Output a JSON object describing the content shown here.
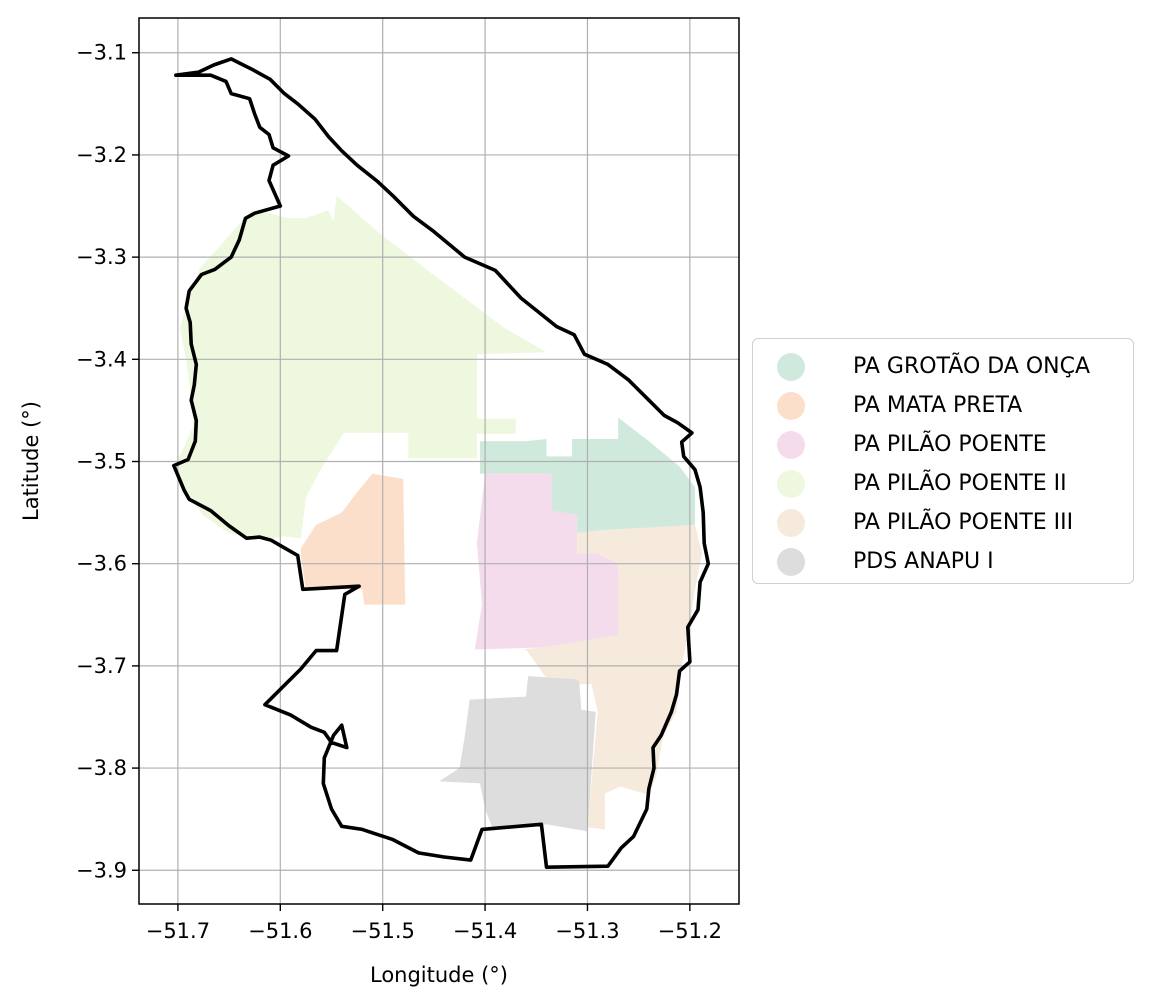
{
  "chart_data": {
    "type": "map",
    "xlabel": "Longitude (°)",
    "ylabel": "Latitude (°)",
    "xlim": [
      -51.738,
      -51.152
    ],
    "ylim": [
      -3.933,
      -3.066
    ],
    "xticks": [
      -51.7,
      -51.6,
      -51.5,
      -51.4,
      -51.3,
      -51.2
    ],
    "xtick_labels": [
      "−51.7",
      "−51.6",
      "−51.5",
      "−51.4",
      "−51.3",
      "−51.2"
    ],
    "yticks": [
      -3.1,
      -3.2,
      -3.3,
      -3.4,
      -3.5,
      -3.6,
      -3.7,
      -3.8,
      -3.9
    ],
    "ytick_labels": [
      "−3.1",
      "−3.2",
      "−3.3",
      "−3.4",
      "−3.5",
      "−3.6",
      "−3.7",
      "−3.8",
      "−3.9"
    ],
    "grid": true,
    "legend_position": "right",
    "legend": [
      {
        "label": "PA GROTÃO DA ONÇA",
        "color": "#cfeadc"
      },
      {
        "label": "PA MATA PRETA",
        "color": "#fcdfca"
      },
      {
        "label": "PA PILÃO POENTE",
        "color": "#f5dcec"
      },
      {
        "label": "PA PILÃO POENTE II",
        "color": "#eef8de"
      },
      {
        "label": "PA PILÃO POENTE III",
        "color": "#f5eadc"
      },
      {
        "label": "PDS ANAPU I",
        "color": "#dddddd"
      }
    ],
    "boundary_color": "#000000",
    "regions": [
      {
        "name": "PA PILÃO POENTE II",
        "color": "#eef8de",
        "coords": [
          [
            -51.607,
            -3.258
          ],
          [
            -51.592,
            -3.262
          ],
          [
            -51.575,
            -3.262
          ],
          [
            -51.553,
            -3.254
          ],
          [
            -51.548,
            -3.265
          ],
          [
            -51.545,
            -3.24
          ],
          [
            -51.505,
            -3.275
          ],
          [
            -51.46,
            -3.31
          ],
          [
            -51.42,
            -3.34
          ],
          [
            -51.38,
            -3.37
          ],
          [
            -51.34,
            -3.393
          ],
          [
            -51.408,
            -3.395
          ],
          [
            -51.408,
            -3.458
          ],
          [
            -51.37,
            -3.458
          ],
          [
            -51.37,
            -3.473
          ],
          [
            -51.408,
            -3.473
          ],
          [
            -51.408,
            -3.497
          ],
          [
            -51.475,
            -3.497
          ],
          [
            -51.475,
            -3.472
          ],
          [
            -51.538,
            -3.472
          ],
          [
            -51.562,
            -3.51
          ],
          [
            -51.575,
            -3.535
          ],
          [
            -51.58,
            -3.575
          ],
          [
            -51.597,
            -3.573
          ],
          [
            -51.615,
            -3.577
          ],
          [
            -51.65,
            -3.57
          ],
          [
            -51.675,
            -3.553
          ],
          [
            -51.685,
            -3.54
          ],
          [
            -51.698,
            -3.52
          ],
          [
            -51.704,
            -3.505
          ],
          [
            -51.695,
            -3.488
          ],
          [
            -51.685,
            -3.465
          ],
          [
            -51.688,
            -3.43
          ],
          [
            -51.692,
            -3.4
          ],
          [
            -51.698,
            -3.37
          ],
          [
            -51.69,
            -3.34
          ],
          [
            -51.678,
            -3.31
          ],
          [
            -51.655,
            -3.285
          ],
          [
            -51.638,
            -3.265
          ],
          [
            -51.628,
            -3.255
          ]
        ]
      },
      {
        "name": "PA GROTÃO DA ONÇA",
        "color": "#cfeadc",
        "coords": [
          [
            -51.405,
            -3.48
          ],
          [
            -51.36,
            -3.48
          ],
          [
            -51.34,
            -3.478
          ],
          [
            -51.34,
            -3.495
          ],
          [
            -51.315,
            -3.495
          ],
          [
            -51.315,
            -3.478
          ],
          [
            -51.27,
            -3.478
          ],
          [
            -51.27,
            -3.457
          ],
          [
            -51.24,
            -3.48
          ],
          [
            -51.21,
            -3.505
          ],
          [
            -51.195,
            -3.525
          ],
          [
            -51.195,
            -3.563
          ],
          [
            -51.285,
            -3.567
          ],
          [
            -51.31,
            -3.57
          ],
          [
            -51.31,
            -3.553
          ],
          [
            -51.335,
            -3.55
          ],
          [
            -51.335,
            -3.512
          ],
          [
            -51.405,
            -3.512
          ]
        ]
      },
      {
        "name": "PA MATA PRETA",
        "color": "#fcdfca",
        "coords": [
          [
            -51.51,
            -3.512
          ],
          [
            -51.48,
            -3.517
          ],
          [
            -51.478,
            -3.64
          ],
          [
            -51.518,
            -3.64
          ],
          [
            -51.52,
            -3.625
          ],
          [
            -51.575,
            -3.625
          ],
          [
            -51.58,
            -3.593
          ],
          [
            -51.58,
            -3.585
          ],
          [
            -51.565,
            -3.562
          ],
          [
            -51.54,
            -3.55
          ],
          [
            -51.525,
            -3.53
          ]
        ]
      },
      {
        "name": "PA PILÃO POENTE",
        "color": "#f5dcec",
        "coords": [
          [
            -51.4,
            -3.512
          ],
          [
            -51.335,
            -3.512
          ],
          [
            -51.335,
            -3.548
          ],
          [
            -51.31,
            -3.552
          ],
          [
            -51.31,
            -3.588
          ],
          [
            -51.29,
            -3.59
          ],
          [
            -51.27,
            -3.6
          ],
          [
            -51.268,
            -3.67
          ],
          [
            -51.345,
            -3.682
          ],
          [
            -51.41,
            -3.684
          ],
          [
            -51.403,
            -3.64
          ],
          [
            -51.408,
            -3.58
          ]
        ]
      },
      {
        "name": "PA PILÃO POENTE III",
        "color": "#f5eadc",
        "coords": [
          [
            -51.31,
            -3.57
          ],
          [
            -51.285,
            -3.567
          ],
          [
            -51.195,
            -3.562
          ],
          [
            -51.188,
            -3.59
          ],
          [
            -51.195,
            -3.625
          ],
          [
            -51.2,
            -3.66
          ],
          [
            -51.208,
            -3.7
          ],
          [
            -51.213,
            -3.745
          ],
          [
            -51.226,
            -3.768
          ],
          [
            -51.233,
            -3.808
          ],
          [
            -51.24,
            -3.826
          ],
          [
            -51.268,
            -3.818
          ],
          [
            -51.283,
            -3.825
          ],
          [
            -51.283,
            -3.86
          ],
          [
            -51.3,
            -3.858
          ],
          [
            -51.29,
            -3.745
          ],
          [
            -51.296,
            -3.718
          ],
          [
            -51.31,
            -3.718
          ],
          [
            -51.32,
            -3.733
          ],
          [
            -51.34,
            -3.712
          ],
          [
            -51.36,
            -3.684
          ],
          [
            -51.365,
            -3.684
          ],
          [
            -51.345,
            -3.682
          ],
          [
            -51.27,
            -3.67
          ],
          [
            -51.27,
            -3.6
          ],
          [
            -51.29,
            -3.59
          ],
          [
            -51.31,
            -3.59
          ]
        ]
      },
      {
        "name": "PDS ANAPU I",
        "color": "#dddddd",
        "coords": [
          [
            -51.415,
            -3.733
          ],
          [
            -51.42,
            -3.77
          ],
          [
            -51.425,
            -3.8
          ],
          [
            -51.445,
            -3.813
          ],
          [
            -51.405,
            -3.815
          ],
          [
            -51.4,
            -3.84
          ],
          [
            -51.393,
            -3.858
          ],
          [
            -51.34,
            -3.855
          ],
          [
            -51.3,
            -3.862
          ],
          [
            -51.292,
            -3.745
          ],
          [
            -51.306,
            -3.743
          ],
          [
            -51.308,
            -3.715
          ],
          [
            -51.312,
            -3.713
          ],
          [
            -51.358,
            -3.71
          ],
          [
            -51.36,
            -3.73
          ]
        ]
      }
    ],
    "boundary_coords": [
      [
        -51.702,
        -3.122
      ],
      [
        -51.68,
        -3.119
      ],
      [
        -51.665,
        -3.112
      ],
      [
        -51.648,
        -3.106
      ],
      [
        -51.64,
        -3.11
      ],
      [
        -51.628,
        -3.116
      ],
      [
        -51.61,
        -3.126
      ],
      [
        -51.596,
        -3.14
      ],
      [
        -51.583,
        -3.15
      ],
      [
        -51.566,
        -3.165
      ],
      [
        -51.553,
        -3.182
      ],
      [
        -51.54,
        -3.196
      ],
      [
        -51.525,
        -3.21
      ],
      [
        -51.505,
        -3.226
      ],
      [
        -51.49,
        -3.24
      ],
      [
        -51.47,
        -3.26
      ],
      [
        -51.45,
        -3.275
      ],
      [
        -51.42,
        -3.3
      ],
      [
        -51.39,
        -3.313
      ],
      [
        -51.365,
        -3.34
      ],
      [
        -51.33,
        -3.368
      ],
      [
        -51.313,
        -3.376
      ],
      [
        -51.303,
        -3.395
      ],
      [
        -51.28,
        -3.405
      ],
      [
        -51.26,
        -3.42
      ],
      [
        -51.24,
        -3.44
      ],
      [
        -51.225,
        -3.455
      ],
      [
        -51.212,
        -3.462
      ],
      [
        -51.198,
        -3.472
      ],
      [
        -51.208,
        -3.481
      ],
      [
        -51.206,
        -3.495
      ],
      [
        -51.195,
        -3.508
      ],
      [
        -51.19,
        -3.525
      ],
      [
        -51.187,
        -3.55
      ],
      [
        -51.186,
        -3.58
      ],
      [
        -51.182,
        -3.6
      ],
      [
        -51.19,
        -3.618
      ],
      [
        -51.192,
        -3.645
      ],
      [
        -51.202,
        -3.662
      ],
      [
        -51.2,
        -3.696
      ],
      [
        -51.21,
        -3.705
      ],
      [
        -51.213,
        -3.728
      ],
      [
        -51.218,
        -3.745
      ],
      [
        -51.228,
        -3.768
      ],
      [
        -51.236,
        -3.78
      ],
      [
        -51.235,
        -3.8
      ],
      [
        -51.24,
        -3.82
      ],
      [
        -51.242,
        -3.84
      ],
      [
        -51.255,
        -3.867
      ],
      [
        -51.267,
        -3.878
      ],
      [
        -51.28,
        -3.896
      ],
      [
        -51.34,
        -3.897
      ],
      [
        -51.345,
        -3.855
      ],
      [
        -51.403,
        -3.86
      ],
      [
        -51.414,
        -3.89
      ],
      [
        -51.44,
        -3.887
      ],
      [
        -51.465,
        -3.883
      ],
      [
        -51.49,
        -3.87
      ],
      [
        -51.52,
        -3.86
      ],
      [
        -51.54,
        -3.857
      ],
      [
        -51.55,
        -3.84
      ],
      [
        -51.558,
        -3.815
      ],
      [
        -51.557,
        -3.79
      ],
      [
        -51.548,
        -3.768
      ],
      [
        -51.54,
        -3.758
      ],
      [
        -51.535,
        -3.78
      ],
      [
        -51.55,
        -3.775
      ],
      [
        -51.557,
        -3.765
      ],
      [
        -51.57,
        -3.76
      ],
      [
        -51.59,
        -3.748
      ],
      [
        -51.615,
        -3.738
      ],
      [
        -51.58,
        -3.703
      ],
      [
        -51.565,
        -3.685
      ],
      [
        -51.545,
        -3.685
      ],
      [
        -51.537,
        -3.63
      ],
      [
        -51.523,
        -3.622
      ],
      [
        -51.578,
        -3.625
      ],
      [
        -51.583,
        -3.592
      ],
      [
        -51.595,
        -3.585
      ],
      [
        -51.609,
        -3.577
      ],
      [
        -51.62,
        -3.574
      ],
      [
        -51.633,
        -3.575
      ],
      [
        -51.65,
        -3.563
      ],
      [
        -51.668,
        -3.548
      ],
      [
        -51.689,
        -3.537
      ],
      [
        -51.694,
        -3.528
      ],
      [
        -51.704,
        -3.504
      ],
      [
        -51.69,
        -3.498
      ],
      [
        -51.683,
        -3.48
      ],
      [
        -51.682,
        -3.46
      ],
      [
        -51.687,
        -3.44
      ],
      [
        -51.684,
        -3.425
      ],
      [
        -51.682,
        -3.405
      ],
      [
        -51.687,
        -3.385
      ],
      [
        -51.688,
        -3.364
      ],
      [
        -51.692,
        -3.35
      ],
      [
        -51.689,
        -3.333
      ],
      [
        -51.677,
        -3.317
      ],
      [
        -51.664,
        -3.312
      ],
      [
        -51.648,
        -3.3
      ],
      [
        -51.64,
        -3.283
      ],
      [
        -51.634,
        -3.262
      ],
      [
        -51.625,
        -3.257
      ],
      [
        -51.6,
        -3.25
      ],
      [
        -51.611,
        -3.225
      ],
      [
        -51.607,
        -3.21
      ],
      [
        -51.592,
        -3.201
      ],
      [
        -51.607,
        -3.193
      ],
      [
        -51.611,
        -3.18
      ],
      [
        -51.62,
        -3.173
      ],
      [
        -51.625,
        -3.16
      ],
      [
        -51.63,
        -3.145
      ],
      [
        -51.648,
        -3.14
      ],
      [
        -51.653,
        -3.128
      ],
      [
        -51.668,
        -3.122
      ],
      [
        -51.702,
        -3.122
      ]
    ]
  }
}
